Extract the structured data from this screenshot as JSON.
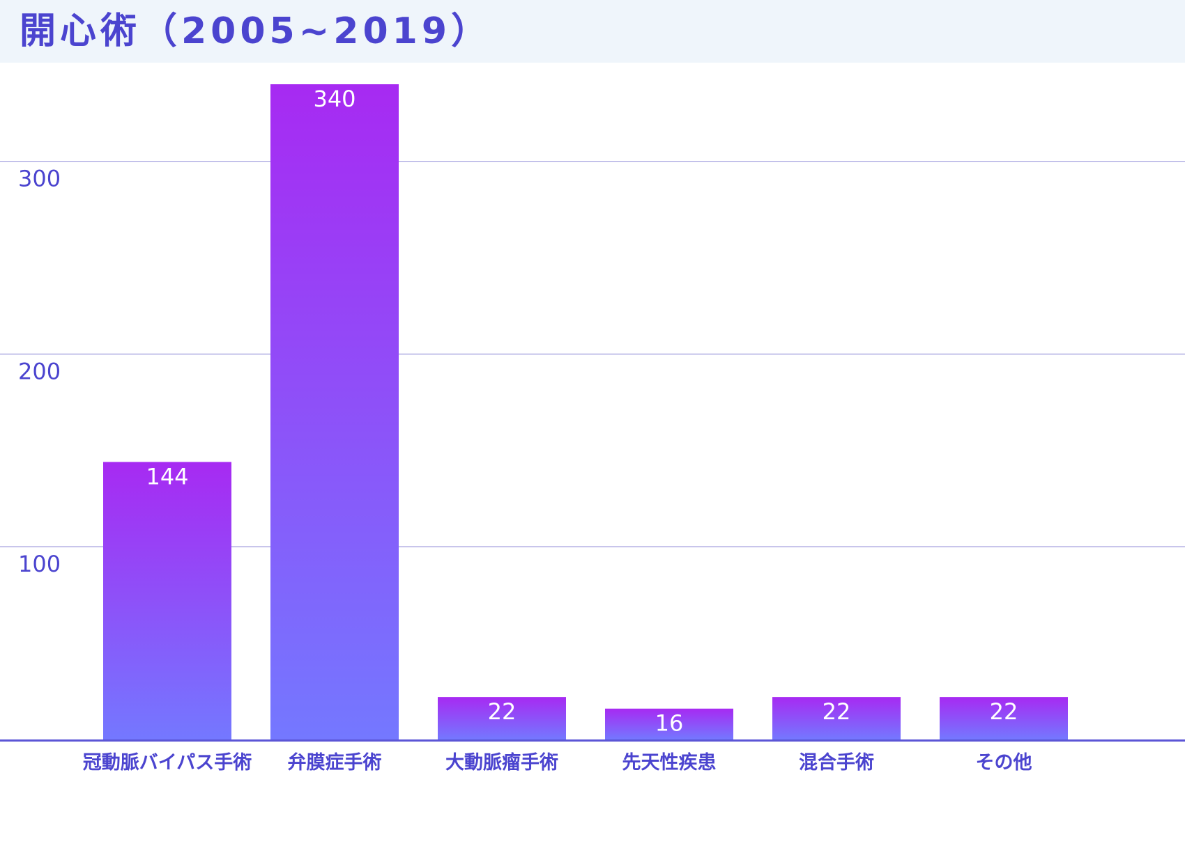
{
  "header": {
    "title": "開心術（2005~2019）"
  },
  "chart_data": {
    "type": "bar",
    "title": "開心術（2005~2019）",
    "xlabel": "",
    "ylabel": "",
    "categories": [
      "冠動脈バイパス手術",
      "弁膜症手術",
      "大動脈瘤手術",
      "先天性疾患",
      "混合手術",
      "その他"
    ],
    "values": [
      144,
      340,
      22,
      16,
      22,
      22
    ],
    "yticks": [
      100,
      200,
      300
    ],
    "ylim": [
      0,
      340
    ],
    "grid": true,
    "legend": "none",
    "data_labels": true
  },
  "colors": {
    "bar_top": "#a72af2",
    "bar_bottom": "#7478ff",
    "axis": "#5b55d6",
    "grid": "#9b97dc",
    "text": "#4b44cf",
    "header_bg": "#eff5fb"
  }
}
